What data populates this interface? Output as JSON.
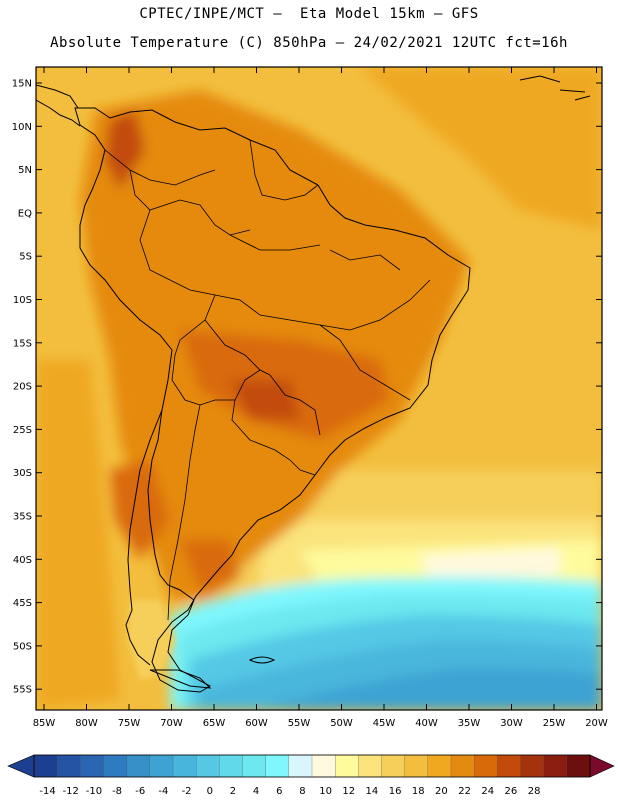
{
  "header": {
    "line1": "CPTEC/INPE/MCT –  Eta Model 15km – GFS",
    "line2": "Absolute Temperature (C) 850hPa – 24/02/2021 12UTC fct=16h"
  },
  "map": {
    "lat_labels": [
      "15N",
      "10N",
      "5N",
      "EQ",
      "5S",
      "10S",
      "15S",
      "20S",
      "25S",
      "30S",
      "35S",
      "40S",
      "45S",
      "50S",
      "55S"
    ],
    "lon_labels": [
      "85W",
      "80W",
      "75W",
      "70W",
      "65W",
      "60W",
      "55W",
      "50W",
      "45W",
      "40W",
      "35W",
      "30W",
      "25W",
      "20W"
    ]
  },
  "colorbar": {
    "labels": [
      "-14",
      "-12",
      "-10",
      "-8",
      "-6",
      "-4",
      "-2",
      "0",
      "2",
      "4",
      "6",
      "8",
      "10",
      "12",
      "14",
      "16",
      "18",
      "20",
      "22",
      "24",
      "26",
      "28"
    ],
    "colors": [
      "#1d3f8f",
      "#2453a3",
      "#2b66b3",
      "#2f7bbf",
      "#3590c8",
      "#3ea3d3",
      "#48b6dc",
      "#55c8e5",
      "#62d9ea",
      "#6de8ef",
      "#7ff7fd",
      "#d8f6fb",
      "#fff9e0",
      "#fefb9d",
      "#fbe37c",
      "#f6cf5a",
      "#f3be3e",
      "#efa820",
      "#e58a10",
      "#d96a0a",
      "#c24b0b",
      "#a4320c",
      "#8a1c10",
      "#6e0f0f"
    ]
  }
}
